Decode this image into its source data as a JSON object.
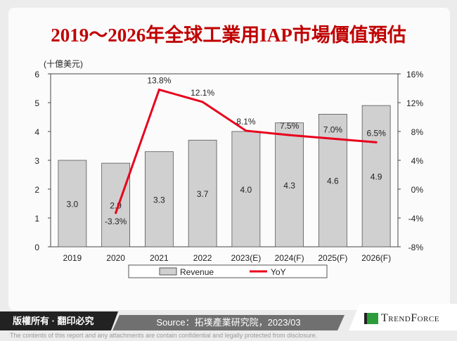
{
  "title": "2019～2026年全球工業用IAP市場價值預估",
  "footer": {
    "copyright": "版權所有 · 翻印必究",
    "source": "Source：拓墣產業研究院，2023/03",
    "brand": "TrendForce",
    "disclaimer": "The contents of this report and any attachments are contain confidential and legally protected from disclosure."
  },
  "chart_data": {
    "type": "bar+line",
    "unit_label": "(十億美元)",
    "categories": [
      "2019",
      "2020",
      "2021",
      "2022",
      "2023(E)",
      "2024(F)",
      "2025(F)",
      "2026(F)"
    ],
    "series": [
      {
        "name": "Revenue",
        "type": "bar",
        "axis": "left",
        "values": [
          3.0,
          2.9,
          3.3,
          3.7,
          4.0,
          4.3,
          4.6,
          4.9
        ],
        "labels": [
          "3.0",
          "2.9",
          "3.3",
          "3.7",
          "4.0",
          "4.3",
          "4.6",
          "4.9"
        ],
        "color": "#d0d0d0"
      },
      {
        "name": "YoY",
        "type": "line",
        "axis": "right",
        "values": [
          null,
          -3.3,
          13.8,
          12.1,
          8.1,
          7.5,
          7.0,
          6.5
        ],
        "labels": [
          "",
          "-3.3%",
          "13.8%",
          "12.1%",
          "8.1%",
          "7.5%",
          "7.0%",
          "6.5%"
        ],
        "color": "#e8001c"
      }
    ],
    "y_left": {
      "range": [
        0,
        6
      ],
      "ticks": [
        "0",
        "1",
        "2",
        "3",
        "4",
        "5",
        "6"
      ]
    },
    "y_right": {
      "range": [
        -8,
        16
      ],
      "ticks": [
        "-8%",
        "-4%",
        "0%",
        "4%",
        "8%",
        "12%",
        "16%"
      ]
    },
    "legend": "bottom"
  }
}
